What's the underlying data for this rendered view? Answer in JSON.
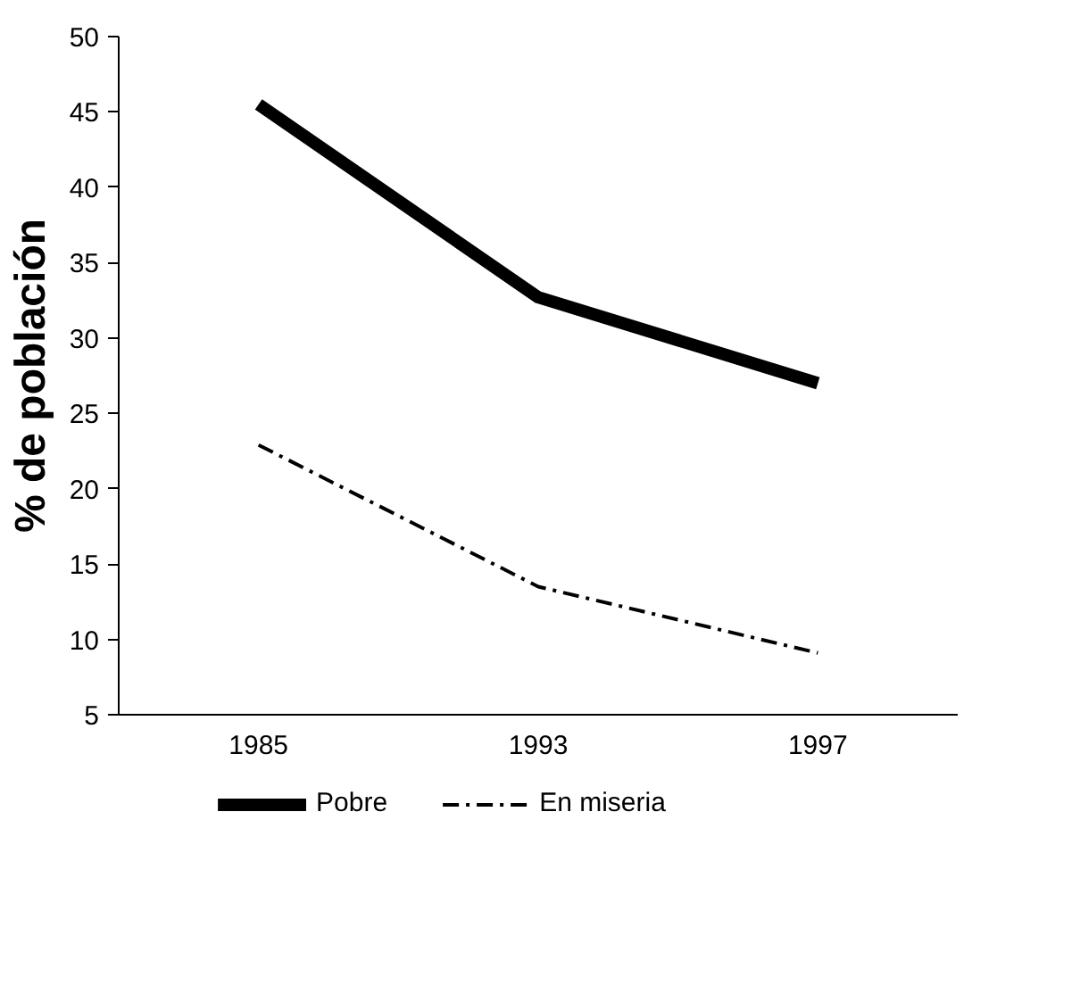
{
  "chart_data": {
    "type": "line",
    "ylabel": "% de población",
    "categories": [
      "1985",
      "1993",
      "1997"
    ],
    "series": [
      {
        "name": "Pobre",
        "color": "#000000",
        "line_style": "solid",
        "values": [
          45.5,
          32.7,
          27.0
        ]
      },
      {
        "name": "En miseria",
        "color": "#000000",
        "line_style": "dashdot",
        "values": [
          22.9,
          13.5,
          9.1
        ]
      }
    ],
    "ylim": [
      5,
      50
    ],
    "yticks": [
      5,
      10,
      15,
      20,
      25,
      30,
      35,
      40,
      45,
      50
    ],
    "grid": false,
    "legend": "bottom",
    "marker": "none"
  }
}
